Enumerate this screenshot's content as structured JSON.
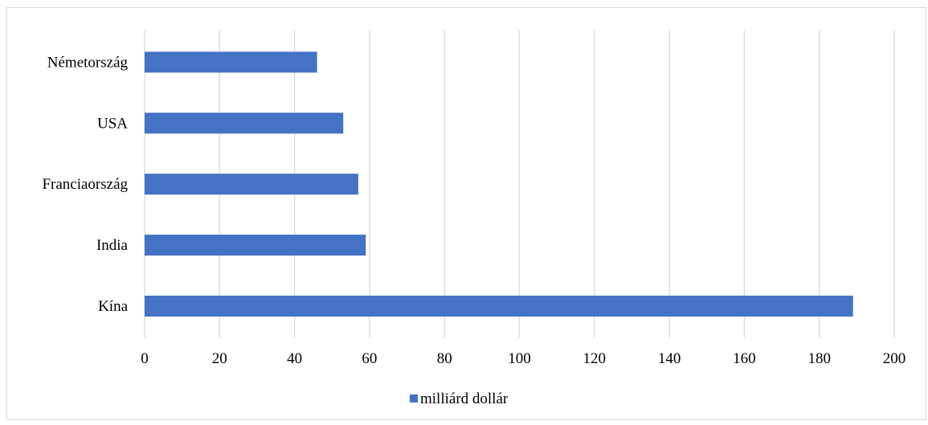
{
  "chart_data": {
    "type": "bar",
    "orientation": "horizontal",
    "categories": [
      "Kína",
      "India",
      "Franciaország",
      "USA",
      "Németország"
    ],
    "series": [
      {
        "name": "milliárd dollár",
        "values": [
          189,
          59,
          57,
          53,
          46
        ]
      }
    ],
    "xlim": [
      0,
      200
    ],
    "xticks": [
      0,
      20,
      40,
      60,
      80,
      100,
      120,
      140,
      160,
      180,
      200
    ],
    "grid": "vertical",
    "legend": "bottom",
    "colors": {
      "bar": "#4472C4",
      "grid": "#d9d9d9"
    }
  }
}
